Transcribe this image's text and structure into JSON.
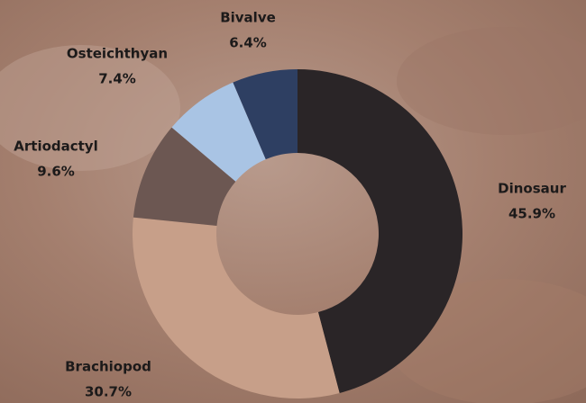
{
  "chart_data": {
    "type": "pie",
    "donut": true,
    "categories": [
      "Dinosaur",
      "Brachiopod",
      "Artiodactyl",
      "Osteichthyan",
      "Bivalve"
    ],
    "values": [
      45.9,
      30.7,
      9.6,
      7.4,
      6.4
    ],
    "value_labels": [
      "45.9%",
      "30.7%",
      "9.6%",
      "7.4%",
      "6.4%"
    ],
    "colors": [
      "#2a2527",
      "#c79f89",
      "#6c5752",
      "#a9c4e4",
      "#2e3f62"
    ]
  }
}
